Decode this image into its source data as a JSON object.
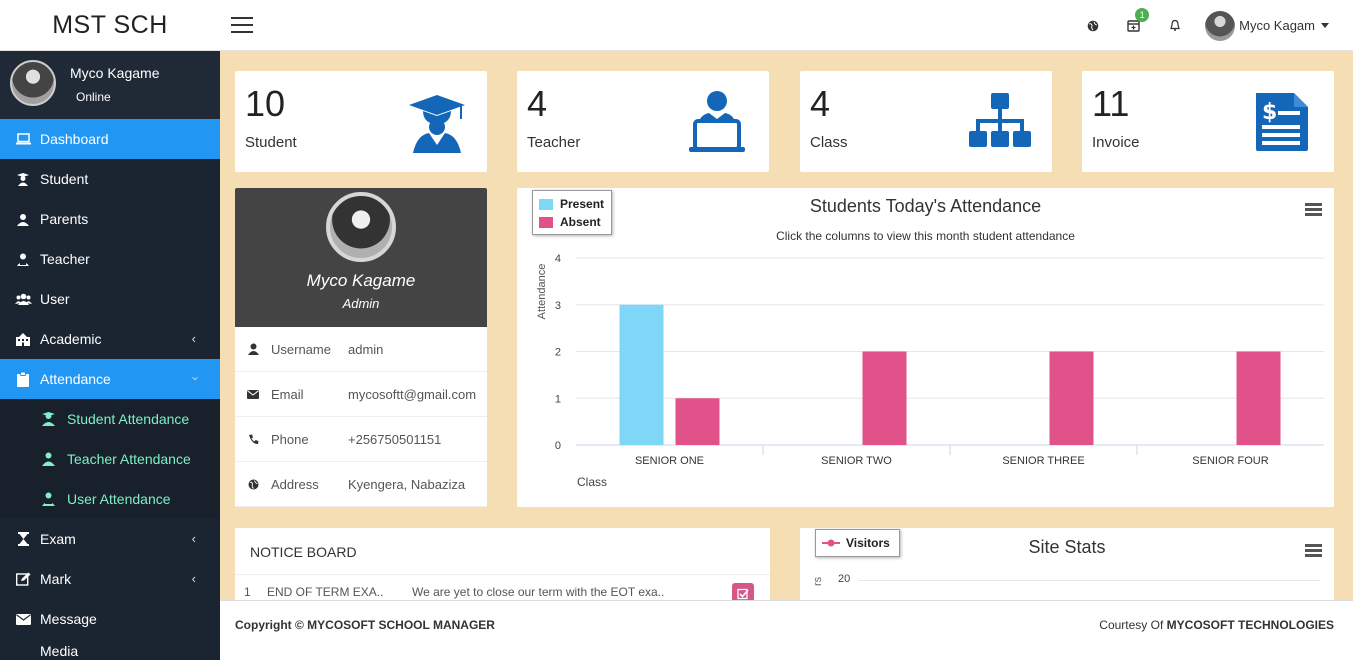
{
  "header": {
    "brand": "MST SCH",
    "notification_count": "1",
    "user_name": "Myco Kagam"
  },
  "sidebar": {
    "user_name": "Myco Kagame",
    "user_status": "Online",
    "items": [
      {
        "label": "Dashboard",
        "icon": "monitor-icon"
      },
      {
        "label": "Student",
        "icon": "student-icon"
      },
      {
        "label": "Parents",
        "icon": "user-icon"
      },
      {
        "label": "Teacher",
        "icon": "teacher-icon"
      },
      {
        "label": "User",
        "icon": "users-icon"
      },
      {
        "label": "Academic",
        "icon": "building-icon"
      },
      {
        "label": "Attendance",
        "icon": "clipboard-icon"
      },
      {
        "label": "Exam",
        "icon": "hourglass-icon"
      },
      {
        "label": "Mark",
        "icon": "edit-icon"
      },
      {
        "label": "Message",
        "icon": "envelope-icon"
      },
      {
        "label": "Media",
        "icon": "media-icon"
      }
    ],
    "attendance_sub": [
      "Student Attendance",
      "Teacher Attendance",
      "User Attendance"
    ]
  },
  "stats": [
    {
      "count": "10",
      "label": "Student",
      "icon": "graduation-cap-icon"
    },
    {
      "count": "4",
      "label": "Teacher",
      "icon": "teacher-laptop-icon"
    },
    {
      "count": "4",
      "label": "Class",
      "icon": "sitemap-icon"
    },
    {
      "count": "11",
      "label": "Invoice",
      "icon": "invoice-icon"
    }
  ],
  "profile": {
    "name": "Myco Kagame",
    "role": "Admin",
    "rows": [
      {
        "label": "Username",
        "value": "admin"
      },
      {
        "label": "Email",
        "value": "mycosoftt@gmail.com"
      },
      {
        "label": "Phone",
        "value": "+256750501151"
      },
      {
        "label": "Address",
        "value": "Kyengera, Nabaziza"
      }
    ]
  },
  "chart_data": {
    "type": "bar",
    "title": "Students Today's Attendance",
    "subtitle": "Click the columns to view this month student attendance",
    "xlabel": "Class",
    "ylabel": "Attendance",
    "categories": [
      "SENIOR ONE",
      "SENIOR TWO",
      "SENIOR THREE",
      "SENIOR FOUR"
    ],
    "series": [
      {
        "name": "Present",
        "color": "#7fd6f6",
        "values": [
          3,
          0,
          0,
          0
        ]
      },
      {
        "name": "Absent",
        "color": "#e05289",
        "values": [
          1,
          2,
          2,
          2
        ]
      }
    ],
    "ylim": [
      0,
      4
    ],
    "yticks": [
      0,
      1,
      2,
      3,
      4
    ],
    "grid": true,
    "legend_position": "top-left"
  },
  "notice": {
    "title": "NOTICE BOARD",
    "rows": [
      {
        "index": "1",
        "title": "END OF TERM EXA..",
        "text": "We are yet to close our term with the EOT exa.."
      }
    ]
  },
  "site_stats": {
    "title": "Site Stats",
    "legend": "Visitors",
    "y_tick": "20",
    "y_label_fragment": "rs"
  },
  "footer": {
    "copyright": "Copyright © MYCOSOFT SCHOOL MANAGER",
    "courtesy_prefix": "Courtesy Of",
    "courtesy_company": "MYCOSOFT TECHNOLOGIES"
  }
}
